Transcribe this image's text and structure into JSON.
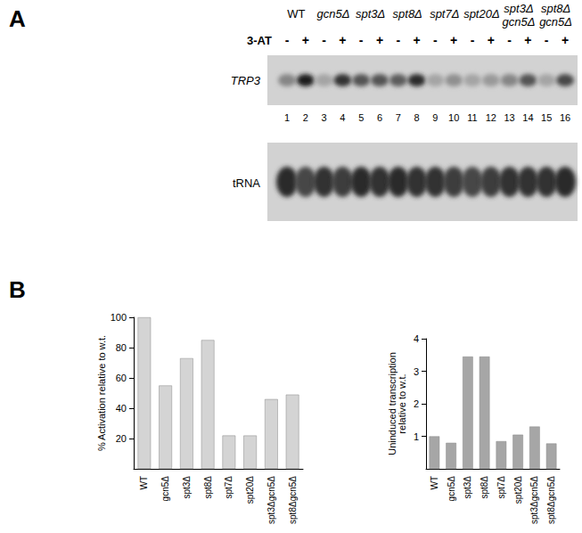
{
  "panel_a": {
    "label": "A",
    "treatment": "3-AT",
    "strains": [
      "WT",
      "gcn5Δ",
      "spt3Δ",
      "spt8Δ",
      "spt7Δ",
      "spt20Δ",
      "spt3Δ\ngcn5Δ",
      "spt8Δ\ngcn5Δ"
    ],
    "treatment_signs": [
      "-",
      "+",
      "-",
      "+",
      "-",
      "+",
      "-",
      "+",
      "-",
      "+",
      "-",
      "+",
      "-",
      "+",
      "-",
      "+"
    ],
    "lanes": [
      1,
      2,
      3,
      4,
      5,
      6,
      7,
      8,
      9,
      10,
      11,
      12,
      13,
      14,
      15,
      16
    ],
    "rows": [
      {
        "label": "TRP3",
        "band_intensity": [
          0.45,
          0.95,
          0.3,
          0.85,
          0.7,
          0.7,
          0.65,
          0.9,
          0.3,
          0.4,
          0.3,
          0.35,
          0.45,
          0.7,
          0.3,
          0.75
        ]
      },
      {
        "label": "tRNA",
        "band_intensity": [
          0.9,
          0.75,
          0.85,
          0.8,
          0.9,
          0.85,
          0.9,
          0.85,
          0.85,
          0.8,
          0.75,
          0.8,
          0.85,
          0.85,
          0.85,
          0.9
        ]
      }
    ]
  },
  "panel_b_label": "B",
  "chart_data": [
    {
      "type": "bar",
      "ylabel": "% Activation relative to w.t.",
      "categories": [
        "WT",
        "gcn5Δ",
        "spt3Δ",
        "spt8Δ",
        "spt7Δ",
        "spt20Δ",
        "spt3Δgcn5Δ",
        "spt8Δgcn5Δ"
      ],
      "values": [
        100,
        55,
        73,
        85,
        22,
        22,
        46,
        49
      ],
      "color": "#d4d4d4",
      "ylim": [
        0,
        100
      ],
      "yticks": [
        20,
        40,
        60,
        80,
        100
      ],
      "grid": false
    },
    {
      "type": "bar",
      "ylabel": "Uninduced transcription\nrelative to w.t.",
      "categories": [
        "WT",
        "gcn5Δ",
        "spt3Δ",
        "spt8Δ",
        "spt7Δ",
        "spt20Δ",
        "spt3Δgcn5Δ",
        "spt8Δgcn5Δ"
      ],
      "values": [
        1.0,
        0.8,
        3.45,
        3.45,
        0.85,
        1.05,
        1.3,
        0.78
      ],
      "color": "#a6a6a6",
      "ylim": [
        0,
        4
      ],
      "yticks": [
        1,
        2,
        3,
        4
      ],
      "grid": false
    }
  ]
}
